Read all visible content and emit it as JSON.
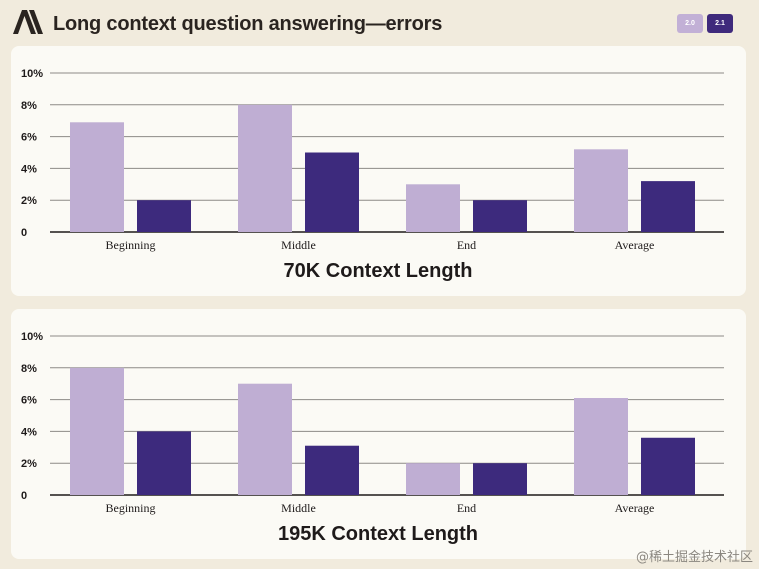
{
  "header": {
    "title": "Long context question answering—errors",
    "logo_text": "A\\",
    "legend": [
      {
        "label": "2.0",
        "color": "#c2b0d6"
      },
      {
        "label": "2.1",
        "color": "#3f2a7c"
      }
    ]
  },
  "chart_data": [
    {
      "type": "bar",
      "title": "70K Context Length",
      "categories": [
        "Beginning",
        "Middle",
        "End",
        "Average"
      ],
      "series": [
        {
          "name": "2.0",
          "color": "#bfaed3",
          "values": [
            6.9,
            8.0,
            3.0,
            5.2
          ]
        },
        {
          "name": "2.1",
          "color": "#3d2a7d",
          "values": [
            2.0,
            5.0,
            2.0,
            3.2
          ]
        }
      ],
      "ylim": [
        0,
        10
      ],
      "yticks": [
        {
          "value": 0,
          "label": "0"
        },
        {
          "value": 2,
          "label": "2%"
        },
        {
          "value": 4,
          "label": "4%"
        },
        {
          "value": 6,
          "label": "6%"
        },
        {
          "value": 8,
          "label": "8%"
        },
        {
          "value": 10,
          "label": "10%"
        }
      ],
      "grid": true
    },
    {
      "type": "bar",
      "title": "195K Context Length",
      "categories": [
        "Beginning",
        "Middle",
        "End",
        "Average"
      ],
      "series": [
        {
          "name": "2.0",
          "color": "#bfaed3",
          "values": [
            8.0,
            7.0,
            2.0,
            6.1
          ]
        },
        {
          "name": "2.1",
          "color": "#3d2a7d",
          "values": [
            4.0,
            3.1,
            2.0,
            3.6
          ]
        }
      ],
      "ylim": [
        0,
        10
      ],
      "yticks": [
        {
          "value": 0,
          "label": "0"
        },
        {
          "value": 2,
          "label": "2%"
        },
        {
          "value": 4,
          "label": "4%"
        },
        {
          "value": 6,
          "label": "6%"
        },
        {
          "value": 8,
          "label": "8%"
        },
        {
          "value": 10,
          "label": "10%"
        }
      ],
      "grid": true
    }
  ],
  "watermark": "@稀土掘金技术社区"
}
